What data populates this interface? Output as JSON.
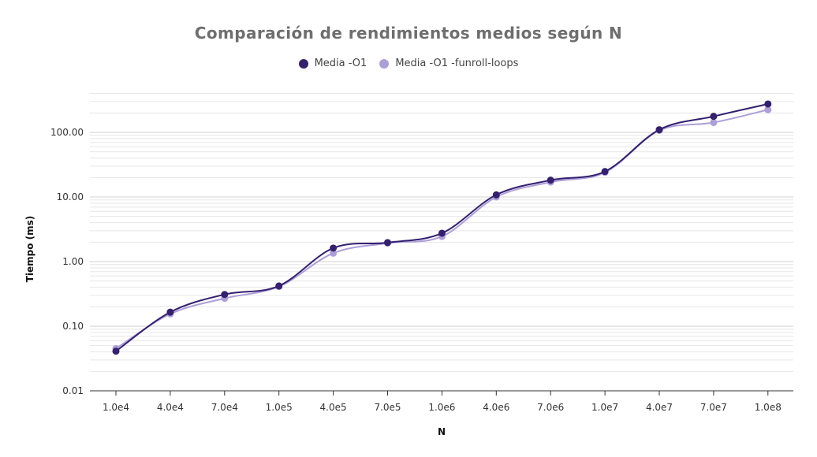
{
  "chart_data": {
    "type": "line",
    "title": "Comparación de rendimientos medios según N",
    "xlabel": "N",
    "ylabel": "Tiempo (ms)",
    "y_scale": "log",
    "ylim": [
      0.01,
      400
    ],
    "y_ticks": [
      "0.01",
      "0.10",
      "1.00",
      "10.00",
      "100.00"
    ],
    "y_tick_values": [
      0.01,
      0.1,
      1,
      10,
      100
    ],
    "grid": true,
    "legend_position": "top-center",
    "categories": [
      "1.0e4",
      "4.0e4",
      "7.0e4",
      "1.0e5",
      "4.0e5",
      "7.0e5",
      "1.0e6",
      "4.0e6",
      "7.0e6",
      "1.0e7",
      "4.0e7",
      "7.0e7",
      "1.0e8"
    ],
    "series": [
      {
        "name": "Media -O1",
        "color": "#33206e",
        "values": [
          0.041,
          0.165,
          0.31,
          0.42,
          1.62,
          1.97,
          2.75,
          10.8,
          18.2,
          24.8,
          110,
          177,
          275
        ]
      },
      {
        "name": "Media -O1 -funroll-loops",
        "color": "#ad9fd8",
        "values": [
          0.045,
          0.155,
          0.27,
          0.41,
          1.35,
          1.93,
          2.45,
          10.0,
          17.0,
          24.0,
          107,
          142,
          224
        ]
      }
    ]
  }
}
